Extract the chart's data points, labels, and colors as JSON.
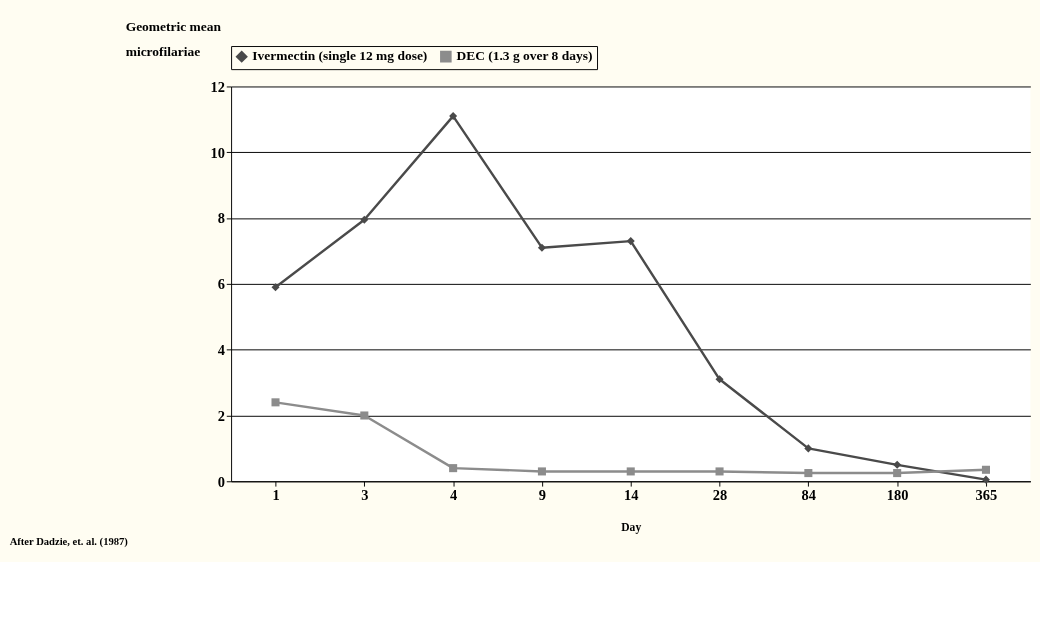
{
  "chart_data": {
    "type": "line",
    "ylabel": "Geometric mean\nmicrofilariae",
    "xlabel": "Day",
    "categories": [
      "1",
      "3",
      "4",
      "9",
      "14",
      "28",
      "84",
      "180",
      "365"
    ],
    "series": [
      {
        "name": "Ivermectin (single 12 mg dose)",
        "color": "#4a4a4a",
        "marker": "diamond",
        "values": [
          5.9,
          7.95,
          11.1,
          7.1,
          7.3,
          3.1,
          1.0,
          0.5,
          0.05
        ]
      },
      {
        "name": "DEC (1.3 g over 8 days)",
        "color": "#8c8c8c",
        "marker": "square",
        "values": [
          2.4,
          2.0,
          0.4,
          0.3,
          0.3,
          0.3,
          0.25,
          0.25,
          0.35
        ]
      }
    ],
    "ylim": [
      0,
      12
    ],
    "yticks": [
      0,
      2,
      4,
      6,
      8,
      10,
      12
    ],
    "grid": "y",
    "legend": "top",
    "line_style": "solid",
    "annotations": [
      "After Dadzie, et. al. (1987)"
    ]
  }
}
